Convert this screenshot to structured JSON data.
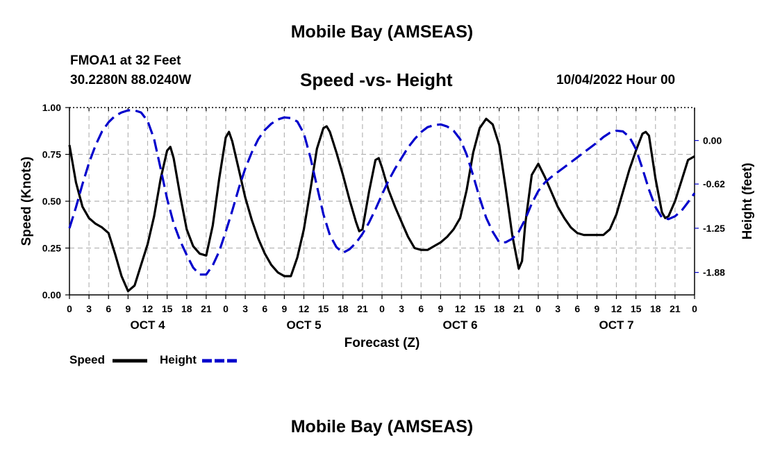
{
  "header": {
    "title": "Mobile Bay (AMSEAS)",
    "station": "FMOA1 at 32 Feet",
    "coords": "30.2280N  88.0240W",
    "datetime": "10/04/2022 Hour 00"
  },
  "footer": {
    "title": "Mobile Bay (AMSEAS)"
  },
  "chart_data": {
    "type": "line",
    "title": "Speed -vs- Height",
    "xlabel": "Forecast (Z)",
    "ylabel_left": "Speed (Knots)",
    "ylabel_right": "Height (feet)",
    "x_range_hours": [
      0,
      96
    ],
    "ylim_left": [
      0,
      1
    ],
    "ylim_right": [
      -2.2,
      0.47
    ],
    "x_tick_labels": [
      "0",
      "3",
      "6",
      "9",
      "12",
      "15",
      "18",
      "21",
      "0",
      "3",
      "6",
      "9",
      "12",
      "15",
      "18",
      "21",
      "0",
      "3",
      "6",
      "9",
      "12",
      "15",
      "18",
      "21",
      "0",
      "3",
      "6",
      "9",
      "12",
      "15",
      "18",
      "21",
      "0"
    ],
    "date_labels": [
      {
        "text": "OCT 4",
        "hour": 12
      },
      {
        "text": "OCT 5",
        "hour": 36
      },
      {
        "text": "OCT 6",
        "hour": 60
      },
      {
        "text": "OCT 7",
        "hour": 84
      }
    ],
    "y_left_ticks": [
      "0.00",
      "0.25",
      "0.50",
      "0.75",
      "1.00"
    ],
    "y_right_ticks": [
      {
        "label": "0.00",
        "value": 0.0
      },
      {
        "label": "-0.62",
        "value": -0.62
      },
      {
        "label": "-1.25",
        "value": -1.25
      },
      {
        "label": "-1.88",
        "value": -1.88
      }
    ],
    "legend": [
      {
        "name": "Speed",
        "color": "#000000",
        "style": "solid"
      },
      {
        "name": "Height",
        "color": "#0000cc",
        "style": "dashed"
      }
    ],
    "series": [
      {
        "name": "Speed",
        "axis": "left",
        "color": "#000000",
        "points": [
          [
            0,
            0.8
          ],
          [
            1,
            0.6
          ],
          [
            2,
            0.47
          ],
          [
            3,
            0.41
          ],
          [
            4,
            0.38
          ],
          [
            5,
            0.36
          ],
          [
            6,
            0.33
          ],
          [
            7,
            0.22
          ],
          [
            8,
            0.1
          ],
          [
            9,
            0.02
          ],
          [
            10,
            0.05
          ],
          [
            11,
            0.16
          ],
          [
            12,
            0.27
          ],
          [
            13,
            0.42
          ],
          [
            14,
            0.62
          ],
          [
            15,
            0.77
          ],
          [
            15.5,
            0.79
          ],
          [
            16,
            0.73
          ],
          [
            17,
            0.53
          ],
          [
            18,
            0.35
          ],
          [
            19,
            0.26
          ],
          [
            20,
            0.22
          ],
          [
            21,
            0.21
          ],
          [
            22,
            0.37
          ],
          [
            23,
            0.62
          ],
          [
            24,
            0.84
          ],
          [
            24.5,
            0.87
          ],
          [
            25,
            0.82
          ],
          [
            26,
            0.67
          ],
          [
            27,
            0.52
          ],
          [
            28,
            0.4
          ],
          [
            29,
            0.3
          ],
          [
            30,
            0.22
          ],
          [
            31,
            0.16
          ],
          [
            32,
            0.12
          ],
          [
            33,
            0.1
          ],
          [
            34,
            0.1
          ],
          [
            35,
            0.2
          ],
          [
            36,
            0.35
          ],
          [
            37,
            0.56
          ],
          [
            38,
            0.78
          ],
          [
            39,
            0.89
          ],
          [
            39.5,
            0.9
          ],
          [
            40,
            0.87
          ],
          [
            41,
            0.76
          ],
          [
            42,
            0.64
          ],
          [
            43,
            0.51
          ],
          [
            44,
            0.39
          ],
          [
            44.5,
            0.34
          ],
          [
            45,
            0.35
          ],
          [
            46,
            0.55
          ],
          [
            47,
            0.72
          ],
          [
            47.5,
            0.73
          ],
          [
            48,
            0.68
          ],
          [
            49,
            0.56
          ],
          [
            50,
            0.47
          ],
          [
            51,
            0.39
          ],
          [
            52,
            0.31
          ],
          [
            53,
            0.25
          ],
          [
            54,
            0.24
          ],
          [
            55,
            0.24
          ],
          [
            56,
            0.26
          ],
          [
            57,
            0.28
          ],
          [
            58,
            0.31
          ],
          [
            59,
            0.35
          ],
          [
            60,
            0.41
          ],
          [
            61,
            0.56
          ],
          [
            62,
            0.76
          ],
          [
            63,
            0.89
          ],
          [
            64,
            0.94
          ],
          [
            65,
            0.91
          ],
          [
            66,
            0.8
          ],
          [
            67,
            0.57
          ],
          [
            68,
            0.32
          ],
          [
            69,
            0.14
          ],
          [
            69.5,
            0.18
          ],
          [
            70,
            0.38
          ],
          [
            71,
            0.64
          ],
          [
            72,
            0.7
          ],
          [
            73,
            0.63
          ],
          [
            74,
            0.55
          ],
          [
            75,
            0.47
          ],
          [
            76,
            0.41
          ],
          [
            77,
            0.36
          ],
          [
            78,
            0.33
          ],
          [
            79,
            0.32
          ],
          [
            80,
            0.32
          ],
          [
            81,
            0.32
          ],
          [
            82,
            0.32
          ],
          [
            83,
            0.35
          ],
          [
            84,
            0.43
          ],
          [
            85,
            0.55
          ],
          [
            86,
            0.67
          ],
          [
            87,
            0.77
          ],
          [
            88,
            0.86
          ],
          [
            88.5,
            0.87
          ],
          [
            89,
            0.85
          ],
          [
            90,
            0.62
          ],
          [
            91,
            0.44
          ],
          [
            91.5,
            0.41
          ],
          [
            92,
            0.42
          ],
          [
            93,
            0.5
          ],
          [
            94,
            0.61
          ],
          [
            95,
            0.72
          ],
          [
            96,
            0.74
          ]
        ]
      },
      {
        "name": "Height",
        "axis": "right",
        "color": "#0000cc",
        "points": [
          [
            0,
            -1.25
          ],
          [
            1,
            -0.95
          ],
          [
            2,
            -0.62
          ],
          [
            3,
            -0.32
          ],
          [
            4,
            -0.07
          ],
          [
            5,
            0.13
          ],
          [
            6,
            0.26
          ],
          [
            7,
            0.35
          ],
          [
            8,
            0.4
          ],
          [
            9,
            0.43
          ],
          [
            10,
            0.43
          ],
          [
            11,
            0.4
          ],
          [
            12,
            0.28
          ],
          [
            13,
            0.02
          ],
          [
            14,
            -0.4
          ],
          [
            15,
            -0.83
          ],
          [
            16,
            -1.18
          ],
          [
            17,
            -1.43
          ],
          [
            18,
            -1.63
          ],
          [
            19,
            -1.81
          ],
          [
            20,
            -1.91
          ],
          [
            21,
            -1.91
          ],
          [
            22,
            -1.78
          ],
          [
            23,
            -1.58
          ],
          [
            24,
            -1.3
          ],
          [
            25,
            -1.0
          ],
          [
            26,
            -0.68
          ],
          [
            27,
            -0.4
          ],
          [
            28,
            -0.17
          ],
          [
            29,
            0.02
          ],
          [
            30,
            0.15
          ],
          [
            31,
            0.24
          ],
          [
            32,
            0.3
          ],
          [
            33,
            0.33
          ],
          [
            34,
            0.32
          ],
          [
            35,
            0.27
          ],
          [
            36,
            0.1
          ],
          [
            37,
            -0.24
          ],
          [
            38,
            -0.65
          ],
          [
            39,
            -1.05
          ],
          [
            40,
            -1.35
          ],
          [
            41,
            -1.52
          ],
          [
            42,
            -1.6
          ],
          [
            43,
            -1.55
          ],
          [
            44,
            -1.46
          ],
          [
            45,
            -1.33
          ],
          [
            46,
            -1.17
          ],
          [
            47,
            -0.98
          ],
          [
            48,
            -0.77
          ],
          [
            49,
            -0.57
          ],
          [
            50,
            -0.4
          ],
          [
            51,
            -0.25
          ],
          [
            52,
            -0.1
          ],
          [
            53,
            0.02
          ],
          [
            54,
            0.12
          ],
          [
            55,
            0.19
          ],
          [
            56,
            0.22
          ],
          [
            57,
            0.23
          ],
          [
            58,
            0.2
          ],
          [
            59,
            0.14
          ],
          [
            60,
            0.02
          ],
          [
            61,
            -0.2
          ],
          [
            62,
            -0.5
          ],
          [
            63,
            -0.82
          ],
          [
            64,
            -1.1
          ],
          [
            65,
            -1.3
          ],
          [
            66,
            -1.45
          ],
          [
            67,
            -1.45
          ],
          [
            68,
            -1.4
          ],
          [
            69,
            -1.3
          ],
          [
            70,
            -1.12
          ],
          [
            71,
            -0.9
          ],
          [
            72,
            -0.72
          ],
          [
            73,
            -0.6
          ],
          [
            74,
            -0.52
          ],
          [
            75,
            -0.45
          ],
          [
            76,
            -0.38
          ],
          [
            77,
            -0.31
          ],
          [
            78,
            -0.24
          ],
          [
            79,
            -0.17
          ],
          [
            80,
            -0.1
          ],
          [
            81,
            -0.03
          ],
          [
            82,
            0.05
          ],
          [
            83,
            0.11
          ],
          [
            84,
            0.14
          ],
          [
            85,
            0.13
          ],
          [
            86,
            0.05
          ],
          [
            87,
            -0.12
          ],
          [
            88,
            -0.4
          ],
          [
            89,
            -0.7
          ],
          [
            90,
            -0.95
          ],
          [
            91,
            -1.1
          ],
          [
            92,
            -1.12
          ],
          [
            93,
            -1.08
          ],
          [
            94,
            -1.0
          ],
          [
            95,
            -0.88
          ],
          [
            96,
            -0.75
          ]
        ]
      }
    ]
  }
}
